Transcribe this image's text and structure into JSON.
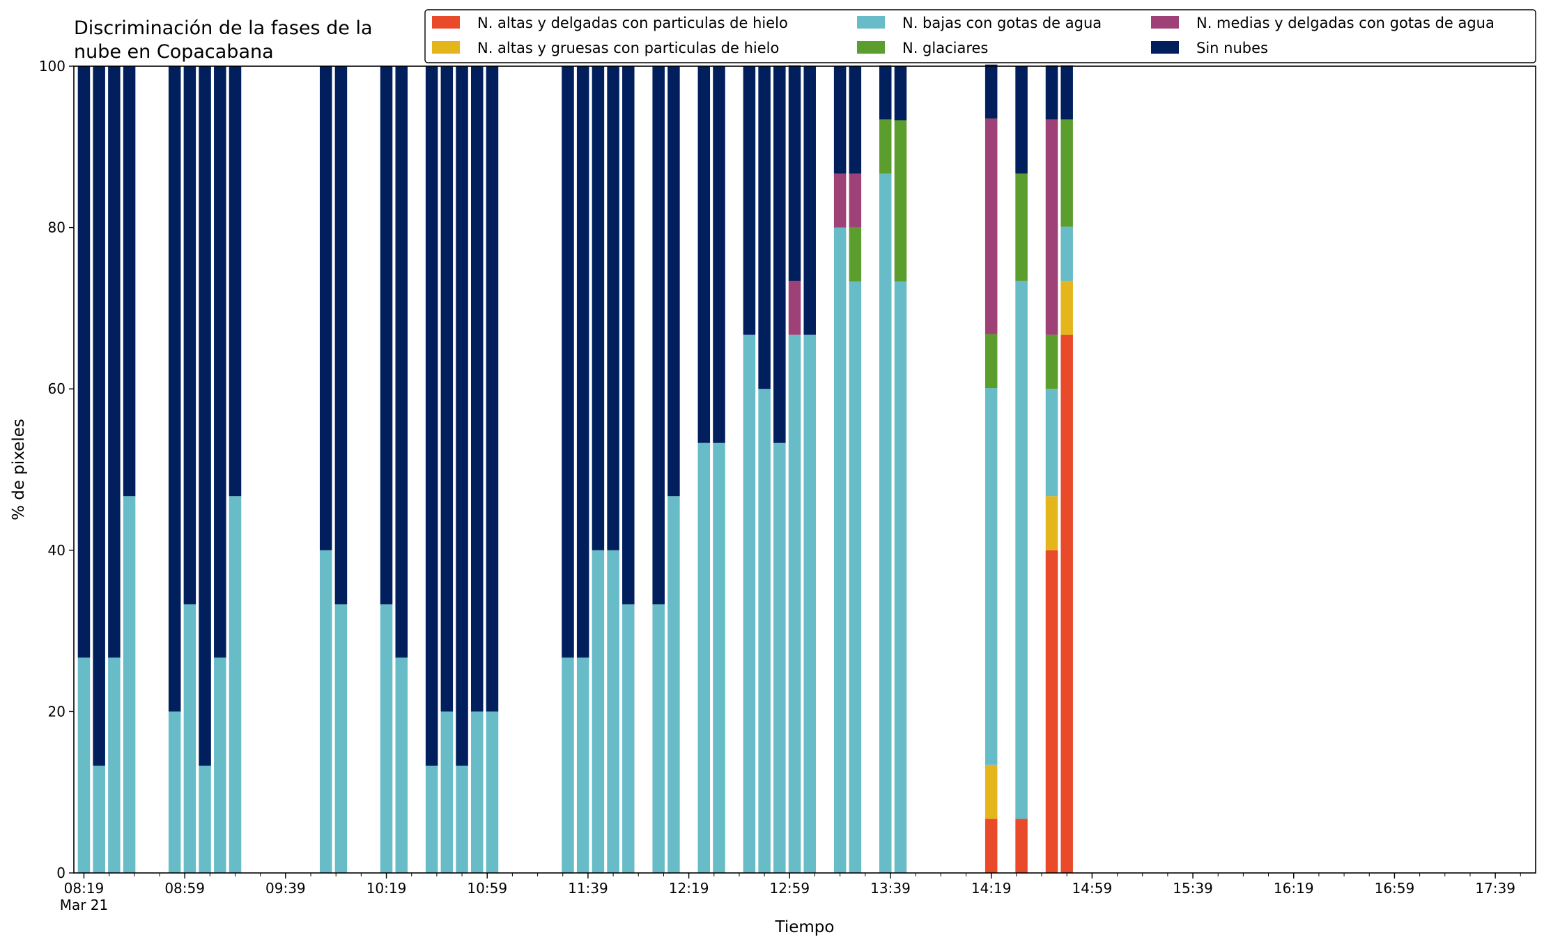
{
  "chart_data": {
    "type": "bar",
    "stacked": true,
    "title_lines": [
      "Discriminación de la fases de la",
      "nube en Copacabana"
    ],
    "xlabel": "Tiempo",
    "ylabel": "% de pixeles",
    "ylim": [
      0,
      100
    ],
    "yticks": [
      0,
      20,
      40,
      60,
      80,
      100
    ],
    "x_range": [
      "08:15",
      "17:55"
    ],
    "x_date_label": "Mar 21",
    "x_major_ticks": [
      "08:19",
      "08:59",
      "09:39",
      "10:19",
      "10:59",
      "11:39",
      "12:19",
      "12:59",
      "13:39",
      "14:19",
      "14:59",
      "15:39",
      "16:19",
      "16:59",
      "17:39"
    ],
    "x_minor_step_minutes": 10,
    "grid": false,
    "legend_position": "top-right",
    "series": [
      {
        "name": "N. altas y delgadas con particulas de hielo",
        "color": "#E84A2A"
      },
      {
        "name": "N. altas y gruesas con particulas de hielo",
        "color": "#E5B61C"
      },
      {
        "name": "N. bajas con gotas de agua",
        "color": "#68BCC8"
      },
      {
        "name": "N. glaciares",
        "color": "#5C9E2E"
      },
      {
        "name": "N. medias y delgadas con gotas de agua",
        "color": "#9E4177"
      },
      {
        "name": "Sin nubes",
        "color": "#001F5C"
      }
    ],
    "legend_columns": [
      [
        0,
        1
      ],
      [
        2,
        3
      ],
      [
        4,
        5
      ]
    ],
    "bars": [
      {
        "time": "08:19",
        "values": [
          0,
          0,
          26.7,
          0,
          0,
          73.3
        ]
      },
      {
        "time": "08:25",
        "values": [
          0,
          0,
          13.3,
          0,
          0,
          86.7
        ]
      },
      {
        "time": "08:31",
        "values": [
          0,
          0,
          26.7,
          0,
          0,
          73.3
        ]
      },
      {
        "time": "08:37",
        "values": [
          0,
          0,
          46.7,
          0,
          0,
          53.3
        ]
      },
      {
        "time": "08:55",
        "values": [
          0,
          0,
          20,
          0,
          0,
          80
        ]
      },
      {
        "time": "09:01",
        "values": [
          0,
          0,
          33.3,
          0,
          0,
          66.7
        ]
      },
      {
        "time": "09:07",
        "values": [
          0,
          0,
          13.3,
          0,
          0,
          86.7
        ]
      },
      {
        "time": "09:13",
        "values": [
          0,
          0,
          26.7,
          0,
          0,
          73.3
        ]
      },
      {
        "time": "09:19",
        "values": [
          0,
          0,
          46.7,
          0,
          0,
          53.3
        ]
      },
      {
        "time": "09:55",
        "values": [
          0,
          0,
          40,
          0,
          0,
          60
        ]
      },
      {
        "time": "10:01",
        "values": [
          0,
          0,
          33.3,
          0,
          0,
          66.7
        ]
      },
      {
        "time": "10:19",
        "values": [
          0,
          0,
          33.3,
          0,
          0,
          66.7
        ]
      },
      {
        "time": "10:25",
        "values": [
          0,
          0,
          26.7,
          0,
          0,
          73.3
        ]
      },
      {
        "time": "10:37",
        "values": [
          0,
          0,
          13.3,
          0,
          0,
          86.7
        ]
      },
      {
        "time": "10:43",
        "values": [
          0,
          0,
          20,
          0,
          0,
          80
        ]
      },
      {
        "time": "10:49",
        "values": [
          0,
          0,
          13.3,
          0,
          0,
          86.7
        ]
      },
      {
        "time": "10:55",
        "values": [
          0,
          0,
          20,
          0,
          0,
          80
        ]
      },
      {
        "time": "11:01",
        "values": [
          0,
          0,
          20,
          0,
          0,
          80
        ]
      },
      {
        "time": "11:31",
        "values": [
          0,
          0,
          26.7,
          0,
          0,
          73.3
        ]
      },
      {
        "time": "11:37",
        "values": [
          0,
          0,
          26.7,
          0,
          0,
          73.3
        ]
      },
      {
        "time": "11:43",
        "values": [
          0,
          0,
          40,
          0,
          0,
          60
        ]
      },
      {
        "time": "11:49",
        "values": [
          0,
          0,
          40,
          0,
          0,
          60
        ]
      },
      {
        "time": "11:55",
        "values": [
          0,
          0,
          33.3,
          0,
          0,
          66.7
        ]
      },
      {
        "time": "12:07",
        "values": [
          0,
          0,
          33.3,
          0,
          0,
          66.7
        ]
      },
      {
        "time": "12:13",
        "values": [
          0,
          0,
          46.7,
          0,
          0,
          53.3
        ]
      },
      {
        "time": "12:25",
        "values": [
          0,
          0,
          53.3,
          0,
          0,
          46.7
        ]
      },
      {
        "time": "12:31",
        "values": [
          0,
          0,
          53.3,
          0,
          0,
          46.7
        ]
      },
      {
        "time": "12:43",
        "values": [
          0,
          0,
          66.7,
          0,
          0,
          33.3
        ]
      },
      {
        "time": "12:49",
        "values": [
          0,
          0,
          60,
          0,
          0,
          40
        ]
      },
      {
        "time": "12:55",
        "values": [
          0,
          0,
          53.3,
          0,
          0,
          46.7
        ]
      },
      {
        "time": "13:01",
        "values": [
          0,
          0,
          66.7,
          0,
          6.7,
          26.7
        ]
      },
      {
        "time": "13:07",
        "values": [
          0,
          0,
          66.7,
          0,
          0,
          33.3
        ]
      },
      {
        "time": "13:19",
        "values": [
          0,
          0,
          80,
          0,
          6.7,
          13.3
        ]
      },
      {
        "time": "13:25",
        "values": [
          0,
          0,
          73.3,
          6.7,
          6.7,
          13.3
        ]
      },
      {
        "time": "13:37",
        "values": [
          0,
          0,
          86.7,
          6.7,
          0,
          6.7
        ]
      },
      {
        "time": "13:43",
        "values": [
          0,
          0,
          73.3,
          20,
          0,
          6.7
        ]
      },
      {
        "time": "14:19",
        "values": [
          6.7,
          6.7,
          46.7,
          6.7,
          26.7,
          6.7
        ]
      },
      {
        "time": "14:31",
        "values": [
          6.7,
          0,
          66.7,
          13.3,
          0,
          13.3
        ]
      },
      {
        "time": "14:43",
        "values": [
          40,
          6.7,
          13.3,
          6.7,
          26.7,
          6.7
        ]
      },
      {
        "time": "14:49",
        "values": [
          66.7,
          6.7,
          6.7,
          13.3,
          0,
          6.7
        ]
      }
    ]
  }
}
